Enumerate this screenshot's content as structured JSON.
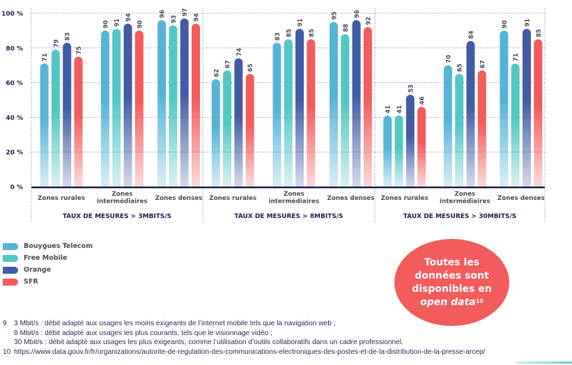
{
  "chart_data": {
    "type": "bar",
    "title": "",
    "ylabel": "",
    "ylim": [
      0,
      100
    ],
    "yticks": [
      "0 %",
      "20 %",
      "40 %",
      "60 %",
      "80 %",
      "100 %"
    ],
    "ytick_values": [
      0,
      20,
      40,
      60,
      80,
      100
    ],
    "grid": true,
    "panels": [
      {
        "title": "TAUX DE MESURES > 3MBITS/S",
        "categories": [
          "Zones rurales",
          "Zones intermédiaires",
          "Zones denses"
        ],
        "series": [
          {
            "name": "Bouygues Telecom",
            "values": [
              71,
              90,
              96
            ]
          },
          {
            "name": "Free Mobile",
            "values": [
              79,
              91,
              93
            ]
          },
          {
            "name": "Orange",
            "values": [
              83,
              94,
              97
            ]
          },
          {
            "name": "SFR",
            "values": [
              75,
              90,
              94
            ]
          }
        ]
      },
      {
        "title": "TAUX DE MESURES > 8MBITS/S",
        "categories": [
          "Zones rurales",
          "Zones intermédiaires",
          "Zones denses"
        ],
        "series": [
          {
            "name": "Bouygues Telecom",
            "values": [
              62,
              83,
              95
            ]
          },
          {
            "name": "Free Mobile",
            "values": [
              67,
              85,
              88
            ]
          },
          {
            "name": "Orange",
            "values": [
              74,
              91,
              96
            ]
          },
          {
            "name": "SFR",
            "values": [
              65,
              85,
              92
            ]
          }
        ]
      },
      {
        "title": "TAUX DE MESURES > 30MBITS/S",
        "categories": [
          "Zones rurales",
          "Zones intermédiaires",
          "Zones denses"
        ],
        "series": [
          {
            "name": "Bouygues Telecom",
            "values": [
              41,
              70,
              90
            ]
          },
          {
            "name": "Free Mobile",
            "values": [
              41,
              65,
              71
            ]
          },
          {
            "name": "Orange",
            "values": [
              53,
              84,
              91
            ]
          },
          {
            "name": "SFR",
            "values": [
              46,
              67,
              85
            ]
          }
        ]
      }
    ],
    "legend": {
      "placement": "bottom-left",
      "entries": [
        {
          "name": "Bouygues Telecom",
          "color": "#56b4d9"
        },
        {
          "name": "Free Mobile",
          "color": "#52c8c4"
        },
        {
          "name": "Orange",
          "color": "#425ba6"
        },
        {
          "name": "SFR",
          "color": "#f45b5b"
        }
      ]
    }
  },
  "colors": {
    "axis": "#1c1b4d",
    "label_text": "#4a4a55",
    "bubble": "#f25c5c"
  },
  "bubble": {
    "line1": "Toutes les",
    "line2": "données sont",
    "line3": "disponibles en",
    "line4_italic": "open data",
    "line4_sup": "10"
  },
  "footnotes": [
    {
      "num": "9",
      "lines": [
        "3 Mbit/s : débit adapté aux usages les moins exigeants de l’internet mobile tels que la navigation web ;",
        "8 Mbit/s : débit adapté aux usages les plus courants, tels que le visionnage vidéo ;",
        "30 Mbit/s : débit adapté aux usages les plus exigeants, comme l’utilisation d’outils collaboratifs dans un cadre professionnel."
      ]
    },
    {
      "num": "10",
      "lines": [
        "https://www.data.gouv.fr/fr/organizations/autorite-de-regulation-des-communications-electroniques-des-postes-et-de-la-distribution-de-la-presse-arcep/"
      ]
    }
  ]
}
